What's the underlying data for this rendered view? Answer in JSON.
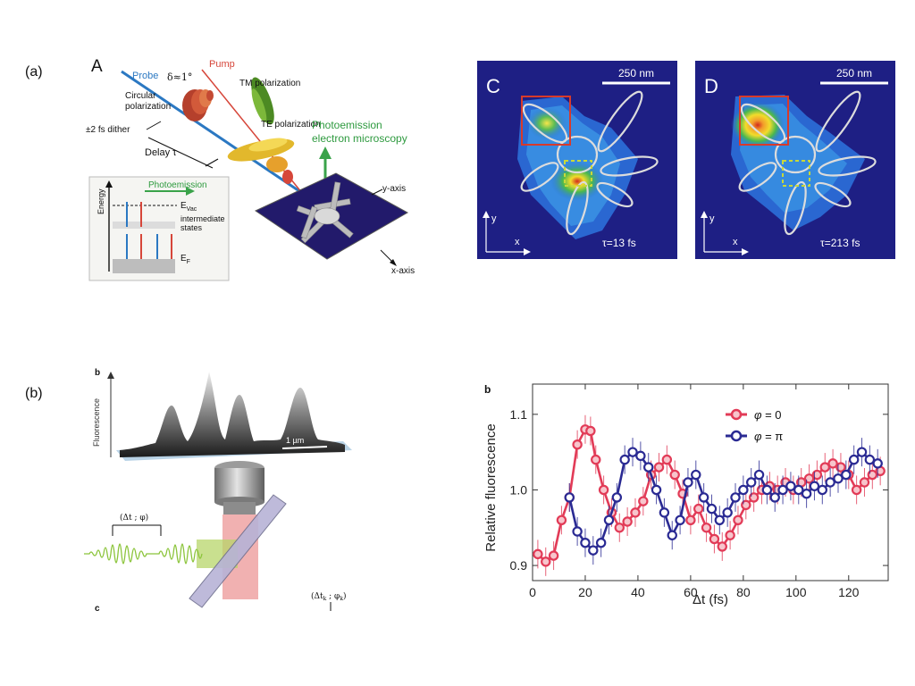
{
  "panel_labels": {
    "a": "(a)",
    "b": "(b)"
  },
  "fig_a": {
    "label": "A",
    "probe": "Probe",
    "pump": "Pump",
    "delta": "δ≈1°",
    "circular": "Circular",
    "polarization": "polarization",
    "tm": "TM polarization",
    "te": "TE polarization",
    "dither": "±2 fs dither",
    "delay": "Delay τ",
    "pem_line1": "Photoemission",
    "pem_line2": "electron microscopy",
    "yaxis": "y-axis",
    "xaxis": "x-axis",
    "inset": {
      "energy": "Energy",
      "photoemission": "Photoemission",
      "evac": "E",
      "evac_sub": "Vac",
      "intermediate1": "intermediate",
      "intermediate2": "states",
      "ef": "E",
      "ef_sub": "F"
    }
  },
  "fig_c": {
    "label": "C",
    "scale": "250 nm",
    "tau": "τ=13 fs",
    "y": "y",
    "x": "x"
  },
  "fig_d": {
    "label": "D",
    "scale": "250 nm",
    "tau": "τ=213 fs",
    "y": "y",
    "x": "x"
  },
  "fig_b_left": {
    "label_b": "b",
    "label_c": "c",
    "ylabel": "Fluorescence",
    "scalebar": "1 µm",
    "pulse_label": "(Δt ; φ)",
    "bottom_label": "(Δt",
    "bottom_sub": "k",
    "bottom_mid": " ; φ",
    "bottom_sub2": "k",
    "bottom_end": ")"
  },
  "chart_data": {
    "type": "line",
    "label": "b",
    "xlabel": "Δt (fs)",
    "ylabel": "Relative fluorescence",
    "xlim": [
      0,
      135
    ],
    "ylim": [
      0.88,
      1.14
    ],
    "xticks": [
      0,
      20,
      40,
      60,
      80,
      100,
      120
    ],
    "yticks": [
      0.9,
      1.0,
      1.1
    ],
    "xtick_labels": [
      "0",
      "20",
      "40",
      "60",
      "80",
      "100",
      "120"
    ],
    "ytick_labels": [
      "0.9",
      "1.0",
      "1.1"
    ],
    "series": [
      {
        "name": "φ = 0",
        "name_sym": "φ",
        "name_val": " = 0",
        "color": "#e23b57",
        "fill": "#f7c5cc",
        "x": [
          2,
          5,
          8,
          11,
          14,
          17,
          20,
          22,
          24,
          27,
          30,
          33,
          36,
          39,
          42,
          45,
          48,
          51,
          54,
          57,
          60,
          63,
          66,
          69,
          72,
          75,
          78,
          81,
          84,
          87,
          90,
          93,
          96,
          99,
          102,
          105,
          108,
          111,
          114,
          117,
          120,
          123,
          126,
          129,
          132
        ],
        "y": [
          0.915,
          0.905,
          0.913,
          0.96,
          0.99,
          1.06,
          1.08,
          1.078,
          1.04,
          1.0,
          0.97,
          0.95,
          0.958,
          0.97,
          0.985,
          1.02,
          1.03,
          1.04,
          1.02,
          0.995,
          0.96,
          0.975,
          0.95,
          0.935,
          0.925,
          0.94,
          0.96,
          0.98,
          0.99,
          1.0,
          1.005,
          1.0,
          1.01,
          1.0,
          1.01,
          1.015,
          1.02,
          1.03,
          1.035,
          1.03,
          1.02,
          1.0,
          1.01,
          1.02,
          1.025
        ]
      },
      {
        "name": "φ = π",
        "name_sym": "φ",
        "name_val": " = π",
        "color": "#2a2a93",
        "fill": "#ffffff",
        "x": [
          14,
          17,
          20,
          23,
          26,
          29,
          32,
          35,
          38,
          41,
          44,
          47,
          50,
          53,
          56,
          59,
          62,
          65,
          68,
          71,
          74,
          77,
          80,
          83,
          86,
          89,
          92,
          95,
          98,
          101,
          104,
          107,
          110,
          113,
          116,
          119,
          122,
          125,
          128,
          131
        ],
        "y": [
          0.99,
          0.945,
          0.93,
          0.92,
          0.93,
          0.96,
          0.99,
          1.04,
          1.05,
          1.045,
          1.03,
          1.0,
          0.97,
          0.94,
          0.96,
          1.01,
          1.02,
          0.99,
          0.975,
          0.96,
          0.97,
          0.99,
          1.0,
          1.01,
          1.02,
          1.0,
          0.99,
          1.0,
          1.005,
          1.0,
          0.995,
          1.005,
          1.0,
          1.01,
          1.015,
          1.02,
          1.04,
          1.05,
          1.04,
          1.035
        ]
      }
    ]
  }
}
